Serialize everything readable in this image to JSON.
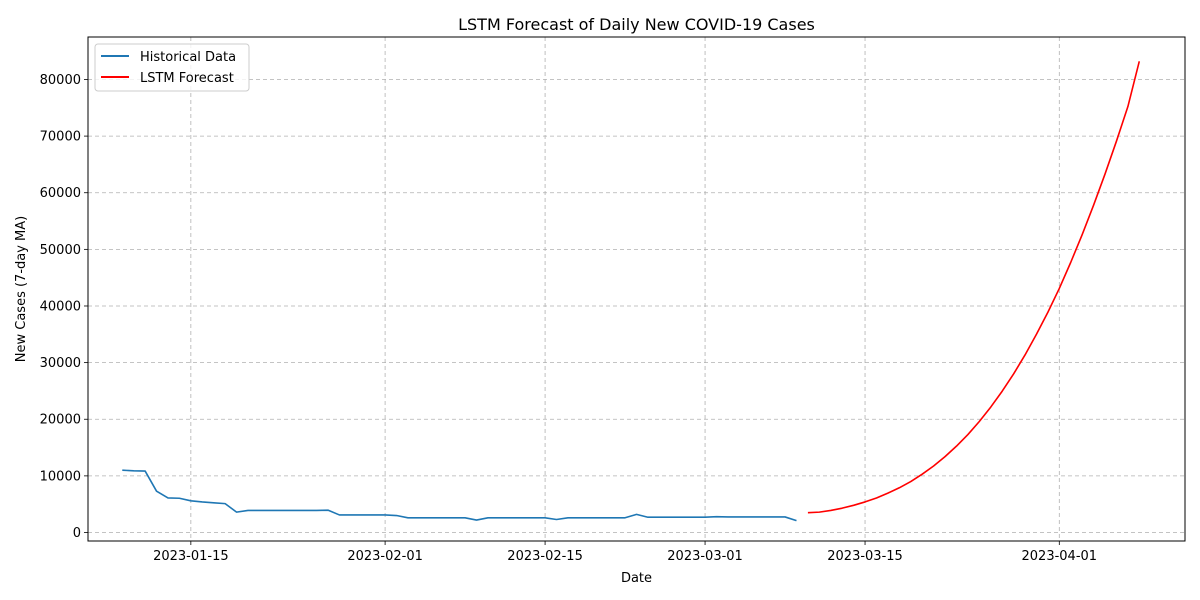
{
  "chart_data": {
    "type": "line",
    "title": "LSTM Forecast of Daily New COVID-19 Cases",
    "xlabel": "Date",
    "ylabel": "New Cases (7-day MA)",
    "x_range": [
      "2023-01-06",
      "2023-04-12"
    ],
    "ylim": [
      -1500,
      87500
    ],
    "x_ticks": [
      {
        "date": "2023-01-15",
        "label": "2023-01-15"
      },
      {
        "date": "2023-02-01",
        "label": "2023-02-01"
      },
      {
        "date": "2023-02-15",
        "label": "2023-02-15"
      },
      {
        "date": "2023-03-01",
        "label": "2023-03-01"
      },
      {
        "date": "2023-03-15",
        "label": "2023-03-15"
      },
      {
        "date": "2023-04-01",
        "label": "2023-04-01"
      }
    ],
    "y_ticks": [
      0,
      10000,
      20000,
      30000,
      40000,
      50000,
      60000,
      70000,
      80000
    ],
    "grid": true,
    "legend_position": "top-left",
    "series": [
      {
        "name": "Historical Data",
        "color": "#1f77b4",
        "points": [
          [
            "2023-01-09",
            11000
          ],
          [
            "2023-01-10",
            10900
          ],
          [
            "2023-01-11",
            10850
          ],
          [
            "2023-01-12",
            7300
          ],
          [
            "2023-01-13",
            6100
          ],
          [
            "2023-01-14",
            6050
          ],
          [
            "2023-01-15",
            5600
          ],
          [
            "2023-01-16",
            5400
          ],
          [
            "2023-01-17",
            5250
          ],
          [
            "2023-01-18",
            5100
          ],
          [
            "2023-01-19",
            3600
          ],
          [
            "2023-01-20",
            3900
          ],
          [
            "2023-01-21",
            3900
          ],
          [
            "2023-01-22",
            3900
          ],
          [
            "2023-01-23",
            3900
          ],
          [
            "2023-01-24",
            3900
          ],
          [
            "2023-01-25",
            3900
          ],
          [
            "2023-01-26",
            3900
          ],
          [
            "2023-01-27",
            3950
          ],
          [
            "2023-01-28",
            3100
          ],
          [
            "2023-01-29",
            3100
          ],
          [
            "2023-01-30",
            3100
          ],
          [
            "2023-01-31",
            3100
          ],
          [
            "2023-02-01",
            3100
          ],
          [
            "2023-02-02",
            3000
          ],
          [
            "2023-02-03",
            2600
          ],
          [
            "2023-02-04",
            2600
          ],
          [
            "2023-02-05",
            2600
          ],
          [
            "2023-02-06",
            2600
          ],
          [
            "2023-02-07",
            2600
          ],
          [
            "2023-02-08",
            2600
          ],
          [
            "2023-02-09",
            2200
          ],
          [
            "2023-02-10",
            2600
          ],
          [
            "2023-02-11",
            2600
          ],
          [
            "2023-02-12",
            2600
          ],
          [
            "2023-02-13",
            2600
          ],
          [
            "2023-02-14",
            2600
          ],
          [
            "2023-02-15",
            2600
          ],
          [
            "2023-02-16",
            2300
          ],
          [
            "2023-02-17",
            2600
          ],
          [
            "2023-02-18",
            2600
          ],
          [
            "2023-02-19",
            2600
          ],
          [
            "2023-02-20",
            2600
          ],
          [
            "2023-02-21",
            2600
          ],
          [
            "2023-02-22",
            2600
          ],
          [
            "2023-02-23",
            3200
          ],
          [
            "2023-02-24",
            2700
          ],
          [
            "2023-02-25",
            2700
          ],
          [
            "2023-02-26",
            2700
          ],
          [
            "2023-02-27",
            2700
          ],
          [
            "2023-02-28",
            2700
          ],
          [
            "2023-03-01",
            2700
          ],
          [
            "2023-03-02",
            2800
          ],
          [
            "2023-03-03",
            2750
          ],
          [
            "2023-03-04",
            2750
          ],
          [
            "2023-03-05",
            2750
          ],
          [
            "2023-03-06",
            2750
          ],
          [
            "2023-03-07",
            2750
          ],
          [
            "2023-03-08",
            2750
          ],
          [
            "2023-03-09",
            2100
          ]
        ]
      },
      {
        "name": "LSTM Forecast",
        "color": "#ff0000",
        "points": [
          [
            "2023-03-10",
            3500
          ],
          [
            "2023-03-11",
            3600
          ],
          [
            "2023-03-12",
            3900
          ],
          [
            "2023-03-13",
            4300
          ],
          [
            "2023-03-14",
            4800
          ],
          [
            "2023-03-15",
            5400
          ],
          [
            "2023-03-16",
            6100
          ],
          [
            "2023-03-17",
            6950
          ],
          [
            "2023-03-18",
            7900
          ],
          [
            "2023-03-19",
            9000
          ],
          [
            "2023-03-20",
            10300
          ],
          [
            "2023-03-21",
            11750
          ],
          [
            "2023-03-22",
            13400
          ],
          [
            "2023-03-23",
            15250
          ],
          [
            "2023-03-24",
            17300
          ],
          [
            "2023-03-25",
            19600
          ],
          [
            "2023-03-26",
            22150
          ],
          [
            "2023-03-27",
            24950
          ],
          [
            "2023-03-28",
            28000
          ],
          [
            "2023-03-29",
            31350
          ],
          [
            "2023-03-30",
            35000
          ],
          [
            "2023-03-31",
            38900
          ],
          [
            "2023-04-01",
            43100
          ],
          [
            "2023-04-02",
            47700
          ],
          [
            "2023-04-03",
            52600
          ],
          [
            "2023-04-04",
            57800
          ],
          [
            "2023-04-05",
            63300
          ],
          [
            "2023-04-06",
            69100
          ],
          [
            "2023-04-07",
            75200
          ],
          [
            "2023-04-08",
            83200
          ]
        ]
      }
    ]
  }
}
